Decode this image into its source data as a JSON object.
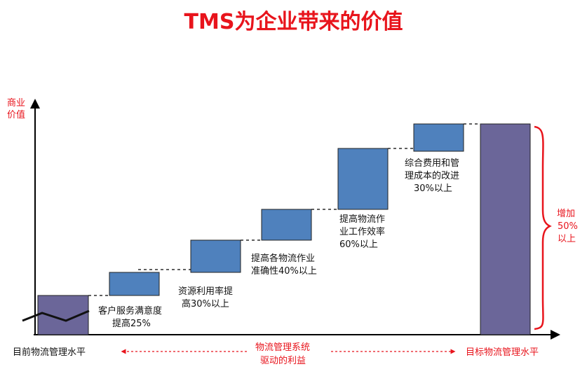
{
  "title": "TMS为企业带来的价值",
  "y_axis_label": [
    "商业",
    "价值"
  ],
  "current_level_label": "目前物流管理水平",
  "target_level_label": "目标物流管理水平",
  "bottom_label": [
    "物流管理系统",
    "驱动的利益"
  ],
  "increase_label": [
    "增加",
    "50%",
    "以上"
  ],
  "steps": [
    {
      "lines": [
        "客户服务满意度",
        "提高25%"
      ]
    },
    {
      "lines": [
        "资源利用率提",
        "高30%以上"
      ]
    },
    {
      "lines": [
        "提高各物流作业",
        "准确性40%以上"
      ]
    },
    {
      "lines": [
        "提高物流作",
        "业工作效率",
        "60%以上"
      ]
    },
    {
      "lines": [
        "综合费用和管",
        "理成本的改进",
        "30%以上"
      ]
    }
  ],
  "colors": {
    "accent_red": "#e8141c",
    "step_fill": "#4f81bd",
    "base_fill": "#6b6699"
  }
}
